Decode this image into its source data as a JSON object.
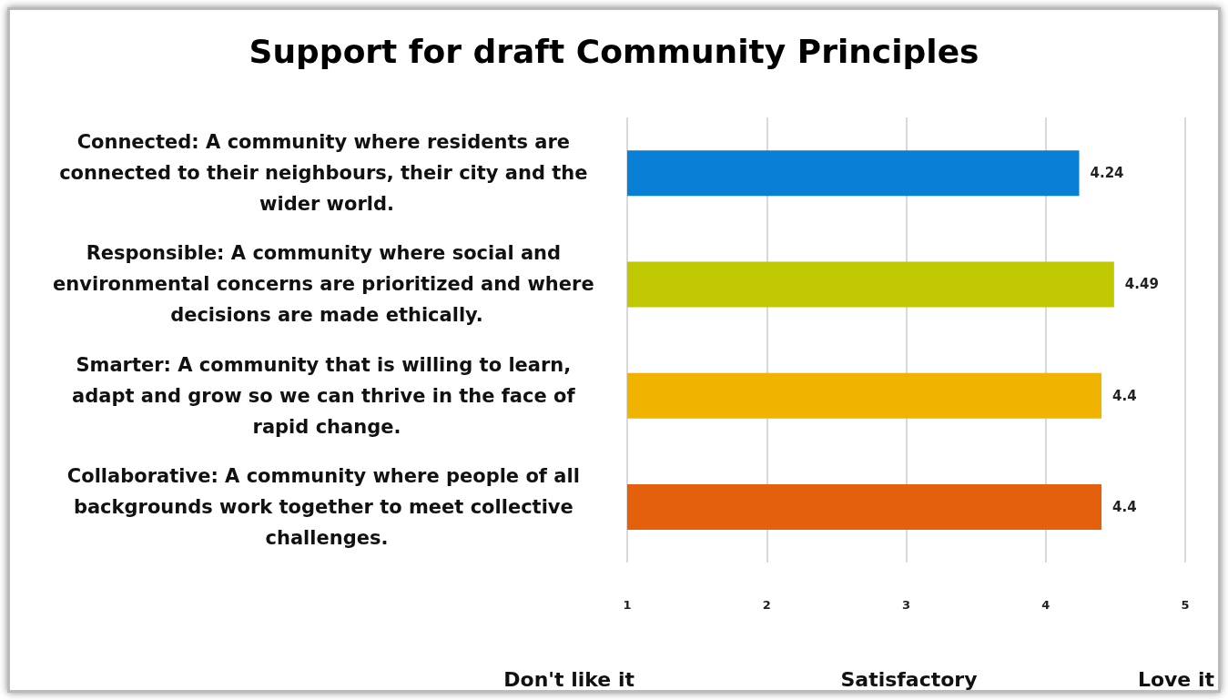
{
  "chart_data": {
    "type": "bar",
    "orientation": "horizontal",
    "title": "Support for draft Community Principles",
    "categories": [
      "Connected: A community where residents are connected to their neighbours, their city and the wider world.",
      "Responsible: A community where social and environmental concerns are prioritized and where decisions are made ethically.",
      "Smarter: A community that is willing to learn, adapt and grow so we can thrive in the face of rapid change.",
      "Collaborative: A community where people of all backgrounds work together to meet collective challenges."
    ],
    "values": [
      4.24,
      4.49,
      4.4,
      4.4
    ],
    "colors": [
      "#0a7fd6",
      "#bfc800",
      "#f0b400",
      "#e5600c"
    ],
    "xlim": [
      1,
      5
    ],
    "xticks": [
      1,
      2,
      3,
      4,
      5
    ],
    "grid": "x",
    "data_labels": true,
    "annotations": [
      "Don't like it",
      "Satisfactory",
      "Love it"
    ]
  }
}
